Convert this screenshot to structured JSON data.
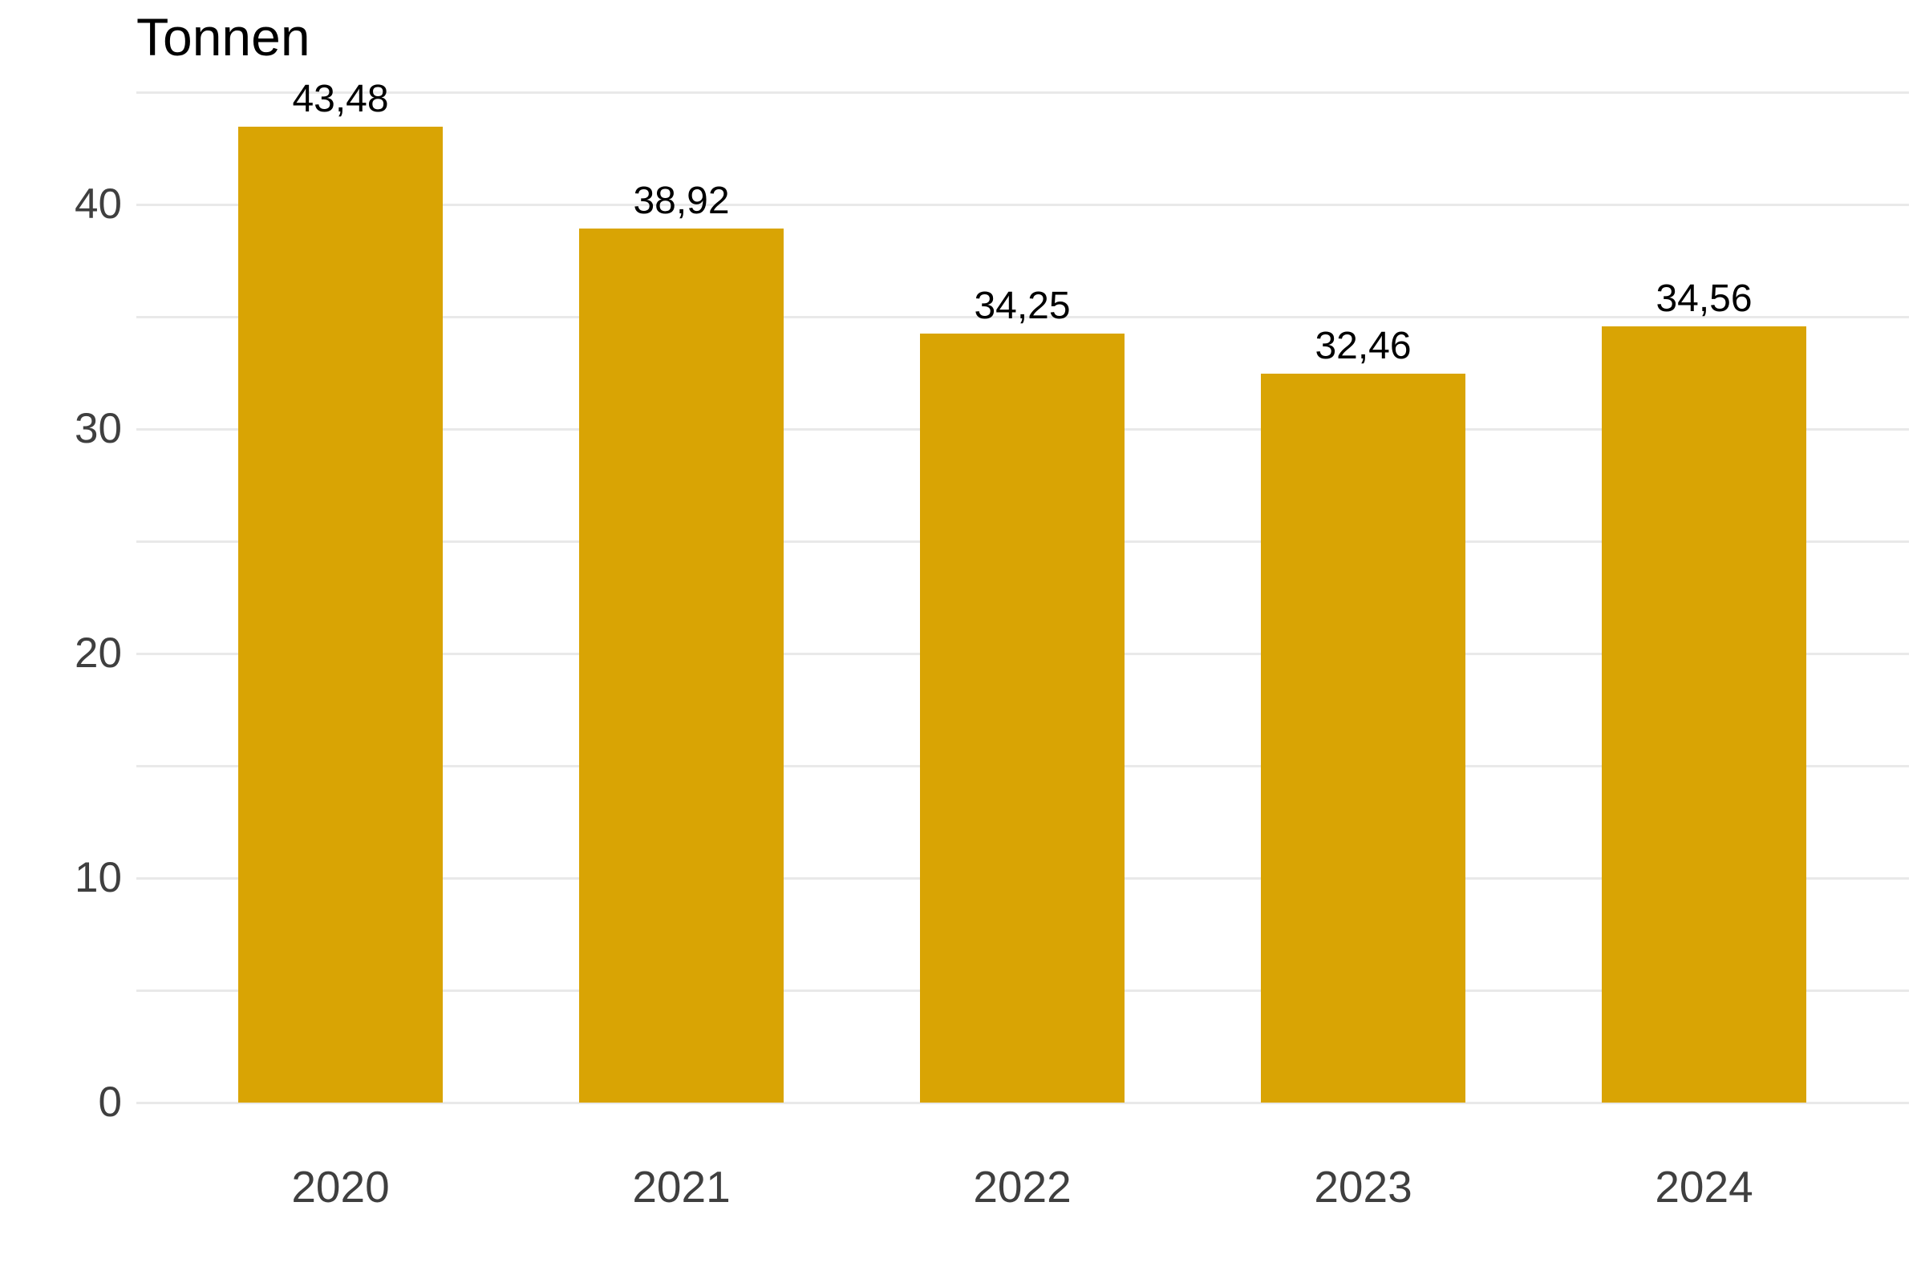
{
  "chart_data": {
    "type": "bar",
    "title": "Tonnen",
    "categories": [
      "2020",
      "2021",
      "2022",
      "2023",
      "2024"
    ],
    "values": [
      43.48,
      38.92,
      34.25,
      32.46,
      34.56
    ],
    "value_labels": [
      "43,48",
      "38,92",
      "34,25",
      "32,46",
      "34,56"
    ],
    "xlabel": "",
    "ylabel": "Tonnen",
    "ylim": [
      0,
      45
    ],
    "grid_step": 5,
    "y_tick_values": [
      0,
      10,
      20,
      30,
      40
    ],
    "y_tick_labels": [
      "0",
      "10",
      "20",
      "30",
      "40"
    ],
    "grid": "horizontal",
    "legend_position": "none",
    "colors": {
      "bar": "#D9A404",
      "gridline": "#E9E9E9",
      "axis_text": "#3F3F3F",
      "value_text": "#000000",
      "title_text": "#000000",
      "background": "#FFFFFF"
    }
  }
}
